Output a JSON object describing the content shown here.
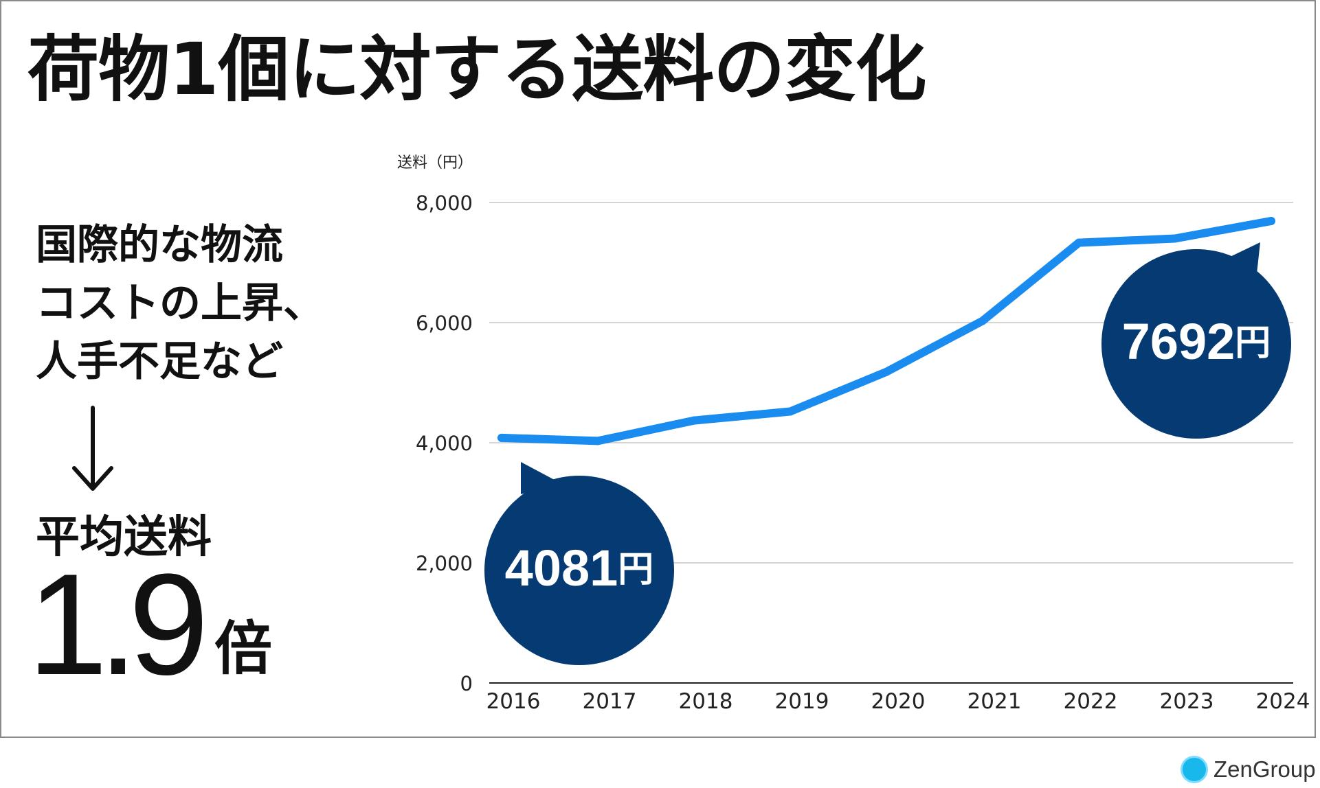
{
  "title": "荷物1個に対する送料の変化",
  "left_panel": {
    "cause_lines": [
      "国際的な物流",
      "コストの上昇、",
      "人手不足など"
    ],
    "arrow_glyph": "↓",
    "average_label": "平均送料",
    "ratio_value": "1.9",
    "ratio_unit": "倍"
  },
  "chart_data": {
    "type": "line",
    "title": "荷物1個に対する送料の変化",
    "ylabel": "送料（円）",
    "xlabel": "",
    "x": [
      "2016",
      "2017",
      "2018",
      "2019",
      "2020",
      "2021",
      "2022",
      "2023",
      "2024"
    ],
    "series": [
      {
        "name": "送料",
        "values": [
          4081,
          4030,
          4370,
          4520,
          5180,
          6030,
          7330,
          7400,
          7692
        ]
      }
    ],
    "ylim": [
      0,
      8000
    ],
    "yticks": [
      0,
      2000,
      4000,
      6000,
      8000
    ],
    "ytick_labels": [
      "0",
      "2,000",
      "4,000",
      "6,000",
      "8,000"
    ],
    "grid": true,
    "annotations": [
      {
        "label": "4081円",
        "value": "4081",
        "unit": "円",
        "year": "2016"
      },
      {
        "label": "7692円",
        "value": "7692",
        "unit": "円",
        "year": "2024"
      }
    ],
    "colors": {
      "line": "#1a8cf0",
      "callout": "#053a73",
      "grid": "#d4d4d4",
      "axis": "#222222"
    }
  },
  "brand": {
    "name": "ZenGroup",
    "icon": "zengroup-logo-icon"
  }
}
